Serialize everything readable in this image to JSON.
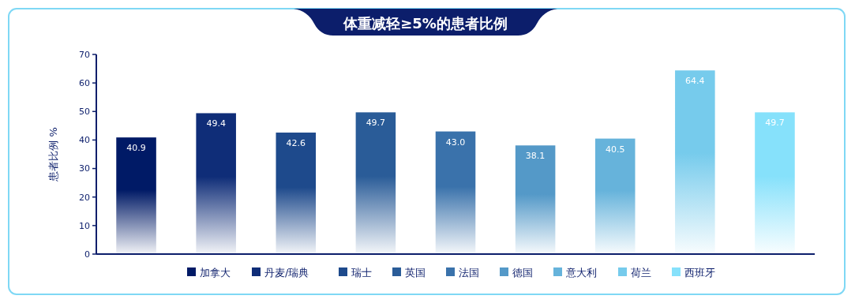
{
  "chart_data": {
    "type": "bar",
    "title": "体重减轻≥5%的患者比例",
    "ylabel": "患者比例 %",
    "categories": [
      null
    ],
    "series": [
      {
        "name": "加拿大",
        "color": "#001a66",
        "values": [
          40.9
        ],
        "value_labels": [
          "40.9"
        ]
      },
      {
        "name": "丹麦/瑞典",
        "color": "#0f2d78",
        "values": [
          49.4
        ],
        "value_labels": [
          "49.4"
        ]
      },
      {
        "name": "瑞士",
        "color": "#1e4a8c",
        "values": [
          42.6
        ],
        "value_labels": [
          "42.6"
        ]
      },
      {
        "name": "英国",
        "color": "#2a5c98",
        "values": [
          49.7
        ],
        "value_labels": [
          "49.7"
        ]
      },
      {
        "name": "法国",
        "color": "#3a72ab",
        "values": [
          43.0
        ],
        "value_labels": [
          "43.0"
        ]
      },
      {
        "name": "德国",
        "color": "#5499c8",
        "values": [
          38.1
        ],
        "value_labels": [
          "38.1"
        ]
      },
      {
        "name": "意大利",
        "color": "#66b3db",
        "values": [
          40.5
        ],
        "value_labels": [
          "40.5"
        ]
      },
      {
        "name": "荷兰",
        "color": "#76cbec",
        "values": [
          64.4
        ],
        "value_labels": [
          "64.4"
        ]
      },
      {
        "name": "西班牙",
        "color": "#86e1fb",
        "values": [
          49.7
        ],
        "value_labels": [
          "49.7"
        ]
      }
    ],
    "ylim": [
      0,
      70
    ],
    "yticks": [
      0,
      10,
      20,
      30,
      40,
      50,
      60,
      70
    ],
    "grid": false,
    "legend": "bottom",
    "tick_labels": "y"
  }
}
